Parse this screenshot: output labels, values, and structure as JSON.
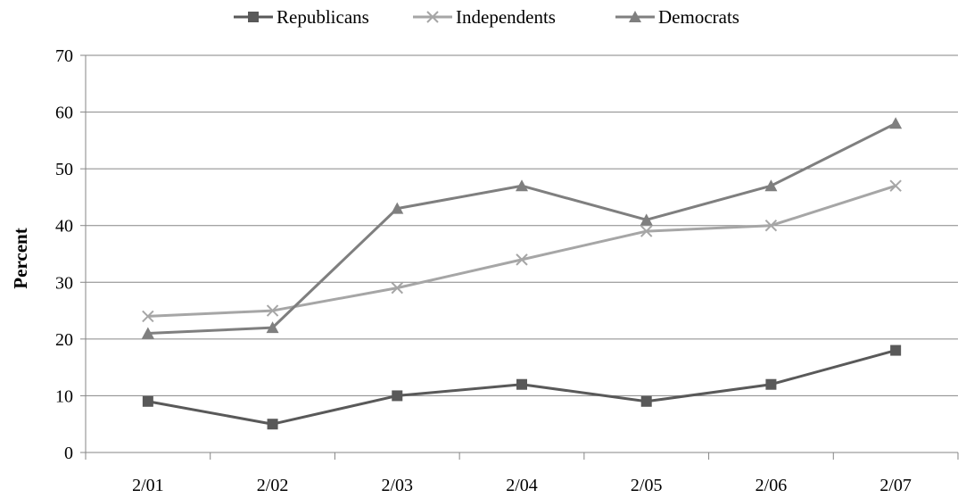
{
  "chart_data": {
    "type": "line",
    "categories": [
      "2/01",
      "2/02",
      "2/03",
      "2/04",
      "2/05",
      "2/06",
      "2/07"
    ],
    "series": [
      {
        "name": "Republicans",
        "values": [
          9,
          5,
          10,
          12,
          9,
          12,
          18
        ],
        "color": "#595959",
        "marker": "square"
      },
      {
        "name": "Independents",
        "values": [
          24,
          25,
          29,
          34,
          39,
          40,
          47
        ],
        "color": "#a6a6a6",
        "marker": "x"
      },
      {
        "name": "Democrats",
        "values": [
          21,
          22,
          43,
          47,
          41,
          47,
          58
        ],
        "color": "#7f7f7f",
        "marker": "triangle"
      }
    ],
    "ylabel": "Percent",
    "ylim": [
      0,
      70
    ],
    "yticks": [
      0,
      10,
      20,
      30,
      40,
      50,
      60,
      70
    ],
    "grid": "horizontal",
    "legend": "top-center"
  }
}
